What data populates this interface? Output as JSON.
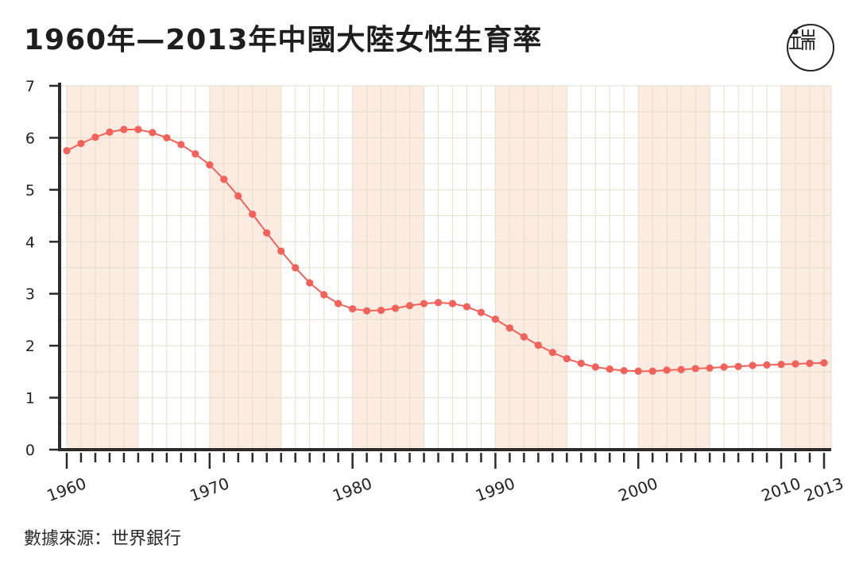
{
  "logo": {
    "icon": "initium-logo",
    "text": "端"
  },
  "source": "數據來源：世界銀行",
  "chart_data": {
    "type": "line",
    "title": "1960年—2013年中國大陸女性生育率",
    "xlabel": "",
    "ylabel": "",
    "x": [
      1960,
      1961,
      1962,
      1963,
      1964,
      1965,
      1966,
      1967,
      1968,
      1969,
      1970,
      1971,
      1972,
      1973,
      1974,
      1975,
      1976,
      1977,
      1978,
      1979,
      1980,
      1981,
      1982,
      1983,
      1984,
      1985,
      1986,
      1987,
      1988,
      1989,
      1990,
      1991,
      1992,
      1993,
      1994,
      1995,
      1996,
      1997,
      1998,
      1999,
      2000,
      2001,
      2002,
      2003,
      2004,
      2005,
      2006,
      2007,
      2008,
      2009,
      2010,
      2011,
      2012,
      2013
    ],
    "series": [
      {
        "values": [
          5.75,
          5.89,
          6.01,
          6.11,
          6.16,
          6.16,
          6.1,
          6.0,
          5.87,
          5.69,
          5.48,
          5.2,
          4.88,
          4.53,
          4.17,
          3.82,
          3.5,
          3.21,
          2.98,
          2.81,
          2.71,
          2.67,
          2.68,
          2.72,
          2.77,
          2.81,
          2.83,
          2.81,
          2.75,
          2.64,
          2.51,
          2.34,
          2.17,
          2.01,
          1.87,
          1.75,
          1.66,
          1.59,
          1.55,
          1.52,
          1.51,
          1.51,
          1.53,
          1.54,
          1.56,
          1.57,
          1.59,
          1.6,
          1.62,
          1.63,
          1.64,
          1.65,
          1.66,
          1.67
        ]
      }
    ],
    "xlim": [
      1959.5,
      2013.5
    ],
    "ylim": [
      0,
      7
    ],
    "x_ticks": [
      1960,
      1970,
      1980,
      1990,
      2000,
      2010,
      2013
    ],
    "y_ticks": [
      0,
      1,
      2,
      3,
      4,
      5,
      6,
      7
    ],
    "grid": true,
    "shaded_ranges": [
      [
        1960,
        1965
      ],
      [
        1970,
        1975
      ],
      [
        1980,
        1985
      ],
      [
        1990,
        1995
      ],
      [
        2000,
        2005
      ],
      [
        2010,
        2013.5
      ]
    ],
    "colors": {
      "line": "#f2625b",
      "band": "#fcebe0",
      "grid": "#e2dfcc",
      "axis": "#2b2b2b"
    }
  }
}
